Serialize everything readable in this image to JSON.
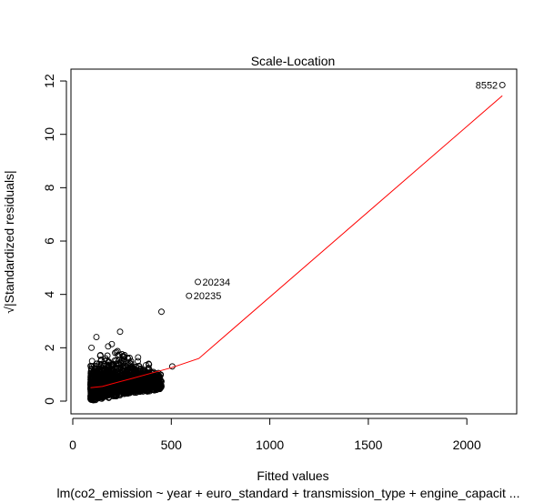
{
  "chart_data": {
    "type": "scatter",
    "title": "Scale-Location",
    "xlabel": "Fitted values",
    "ylabel": "√|Standardized residuals|",
    "subtitle": "lm(co2_emission ~ year + euro_standard + transmission_type + engine_capacit ...",
    "xlim": [
      0,
      2200
    ],
    "ylim": [
      -0.5,
      12.4
    ],
    "x_ticks": [
      "0",
      "500",
      "1000",
      "1500",
      "2000"
    ],
    "y_ticks": [
      "0",
      "2",
      "4",
      "6",
      "8",
      "10",
      "12"
    ],
    "grid": false,
    "point_style": "open circles",
    "cluster": {
      "description": "dense cloud of points",
      "x_range": [
        90,
        500
      ],
      "y_range": [
        0,
        2.6
      ]
    },
    "extra_points": [
      {
        "x": 450,
        "y": 3.35
      },
      {
        "x": 95,
        "y": 2.0
      },
      {
        "x": 120,
        "y": 2.4
      },
      {
        "x": 240,
        "y": 2.6
      },
      {
        "x": 505,
        "y": 1.3
      }
    ],
    "labeled_points": [
      {
        "label": "8552",
        "x": 2180,
        "y": 11.85
      },
      {
        "label": "20234",
        "x": 635,
        "y": 4.47
      },
      {
        "label": "20235",
        "x": 590,
        "y": 3.95
      }
    ],
    "smoother": {
      "color": "#ff0000",
      "points": [
        [
          90,
          0.5
        ],
        [
          150,
          0.55
        ],
        [
          200,
          0.65
        ],
        [
          300,
          0.85
        ],
        [
          400,
          1.05
        ],
        [
          500,
          1.25
        ],
        [
          640,
          1.6
        ],
        [
          2180,
          11.45
        ]
      ]
    }
  }
}
